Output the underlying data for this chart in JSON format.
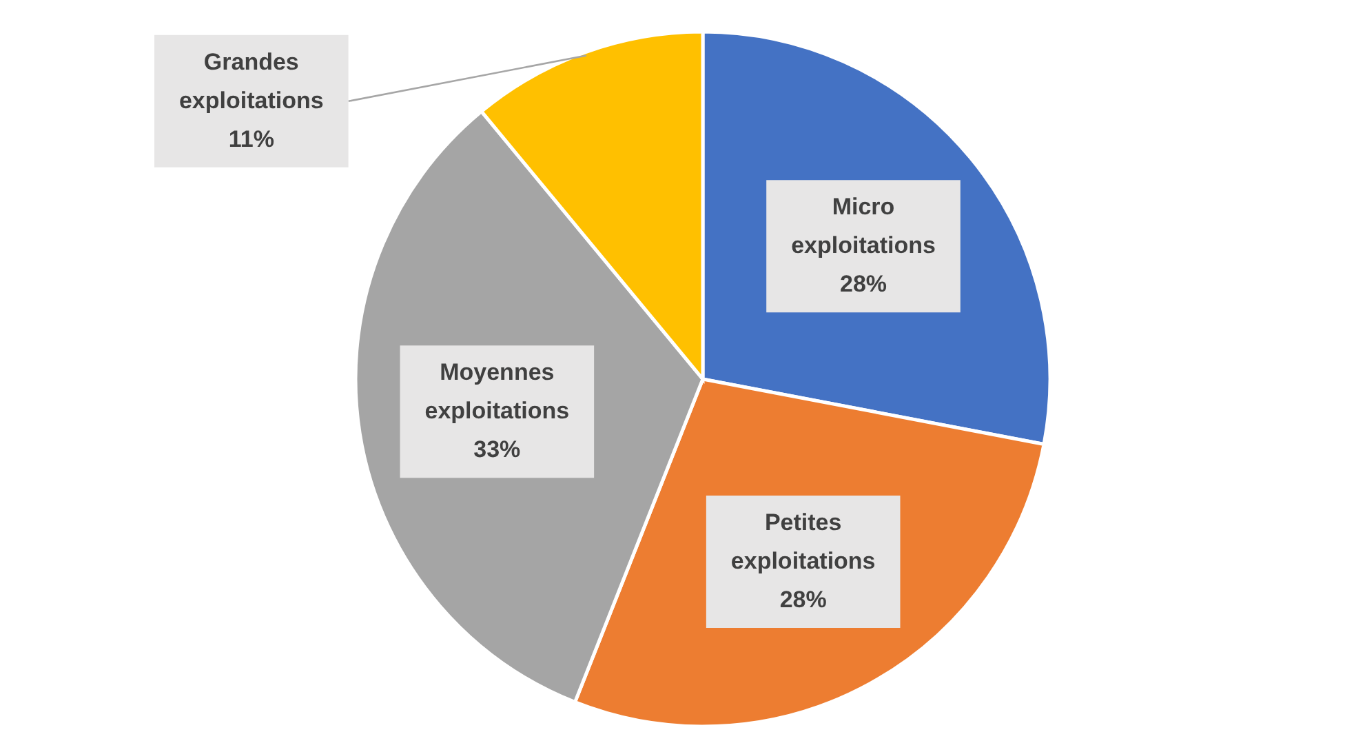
{
  "chart_data": {
    "type": "pie",
    "categories": [
      "Micro exploitations",
      "Petites exploitations",
      "Moyennes exploitations",
      "Grandes exploitations"
    ],
    "values": [
      28,
      28,
      33,
      11
    ],
    "colors": [
      "#4472c4",
      "#ed7d31",
      "#a5a5a5",
      "#ffc000"
    ],
    "value_labels": [
      "28%",
      "28%",
      "33%",
      "11%"
    ]
  }
}
